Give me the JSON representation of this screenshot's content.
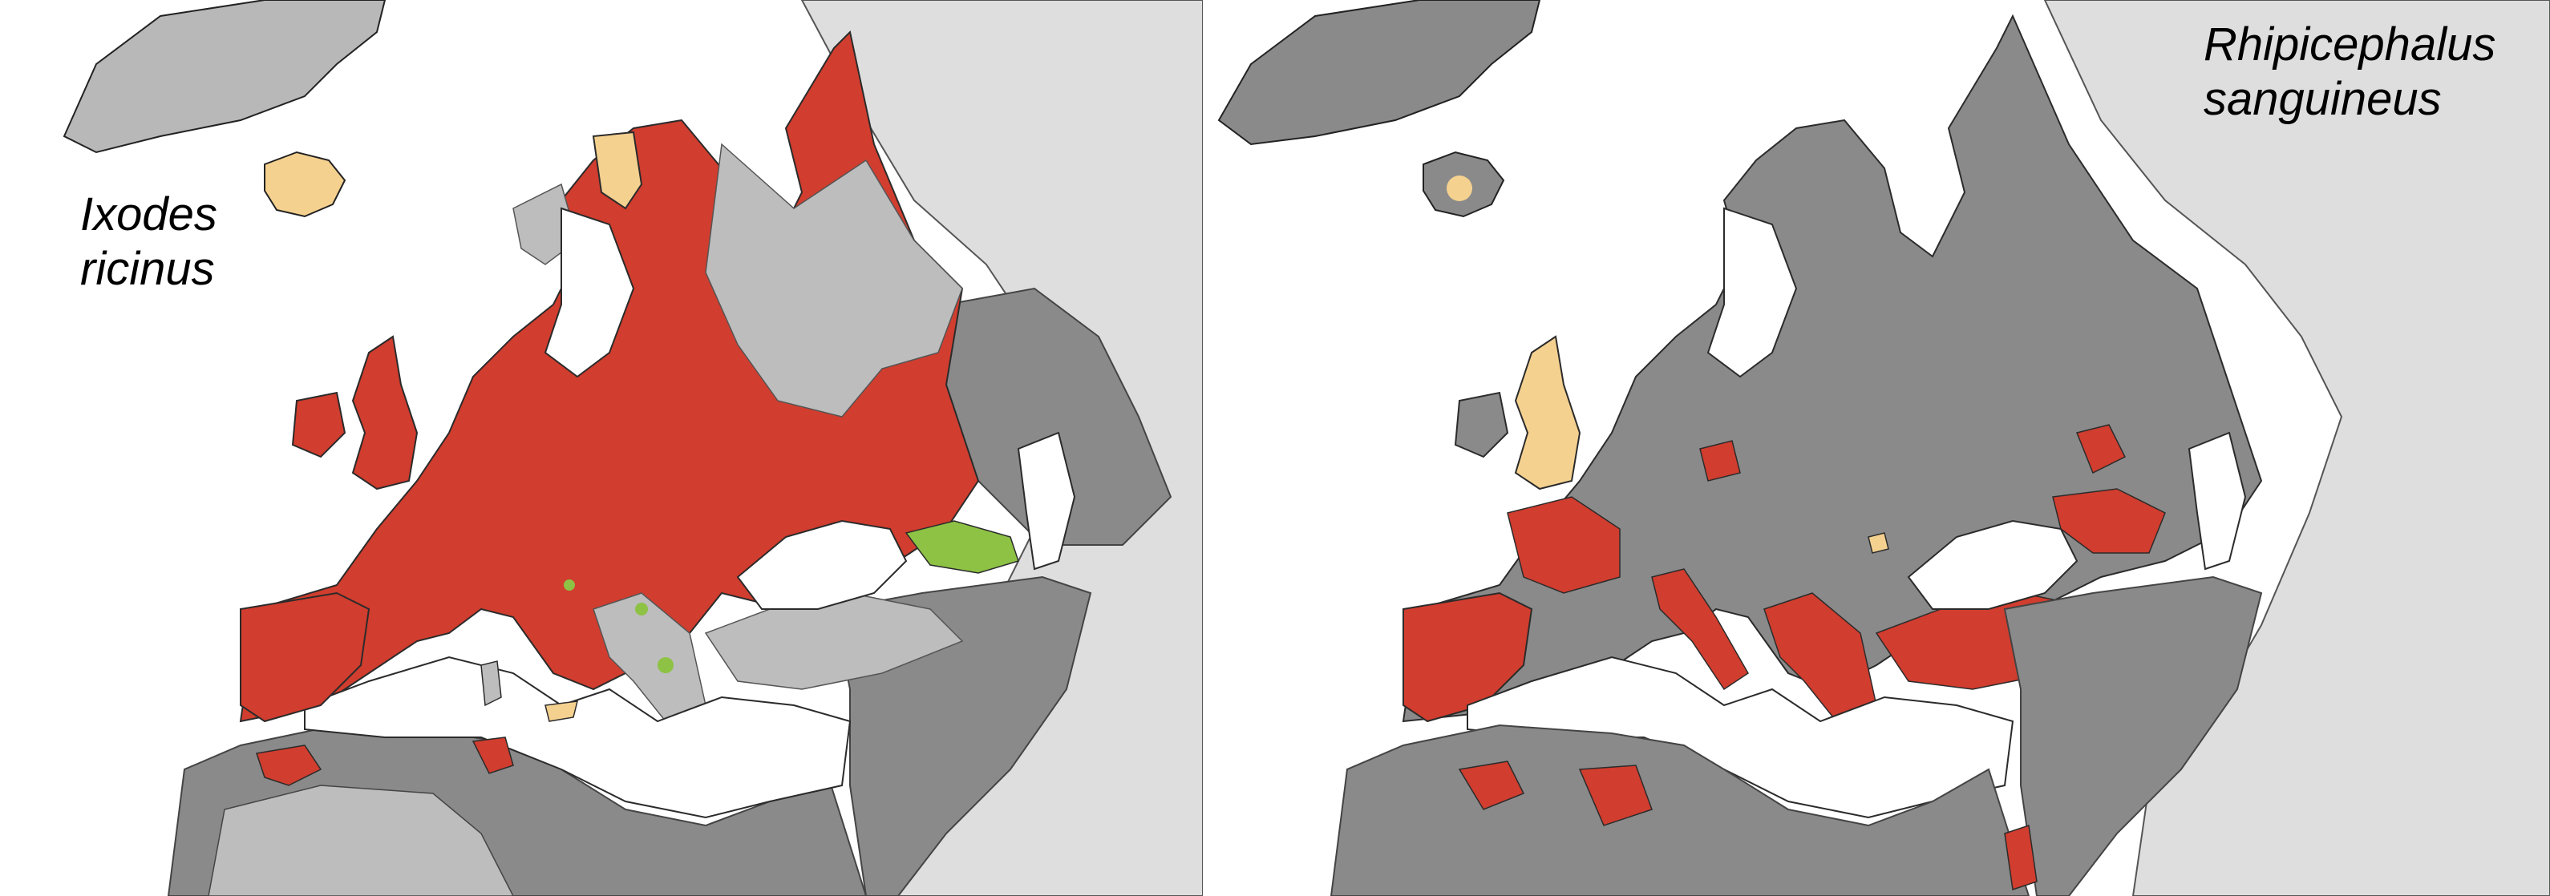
{
  "panels": [
    {
      "species": {
        "genus": "Ixodes",
        "epithet": "ricinus"
      },
      "status_colors": {
        "present": "#d13d2e",
        "introduced": "#8dc245",
        "absent": "#bdbdbd",
        "no_data": "#8a8a8a",
        "outside_area": "#dedede",
        "island": "#f5d190"
      }
    },
    {
      "species": {
        "genus": "Rhipicephalus",
        "epithet": "sanguineus"
      },
      "status_colors": {
        "present": "#d13d2e",
        "absent": "#f5d190",
        "no_data": "#8a8a8a",
        "outside_area": "#dedede"
      }
    }
  ],
  "map_colors": {
    "sea": "#ffffff",
    "border": "#3a3a3a",
    "greenland": "#b8b8b8"
  }
}
